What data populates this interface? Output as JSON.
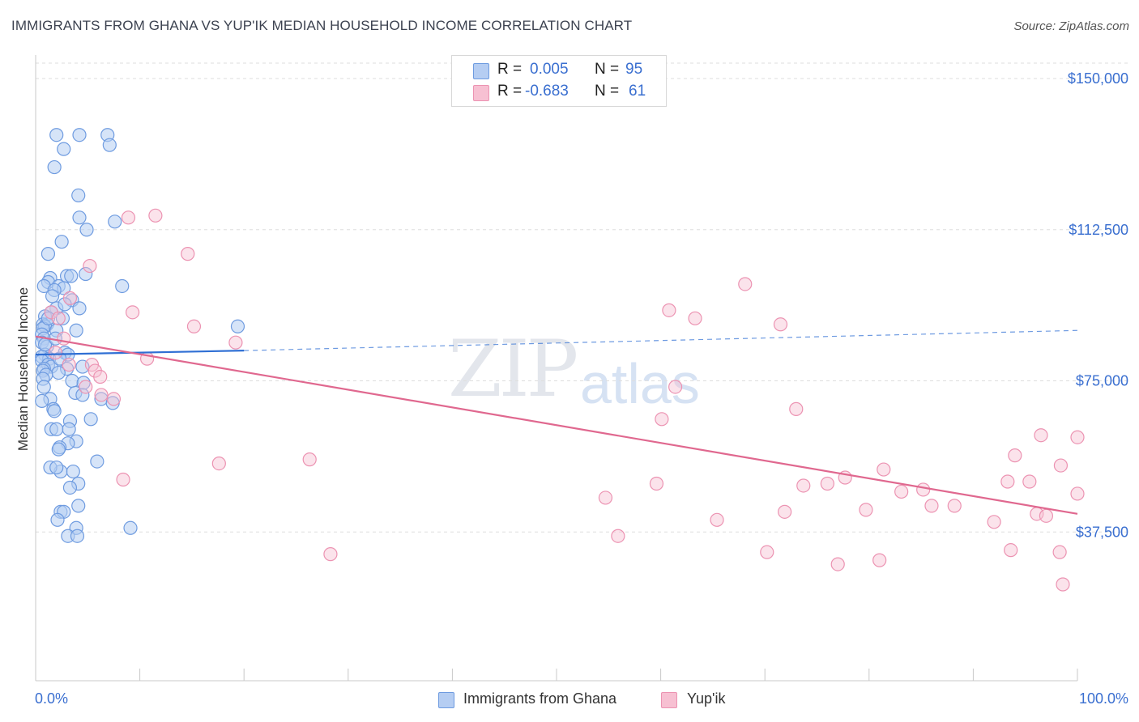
{
  "header": {
    "title": "IMMIGRANTS FROM GHANA VS YUP'IK MEDIAN HOUSEHOLD INCOME CORRELATION CHART",
    "source": "Source: ZipAtlas.com"
  },
  "watermark": {
    "zip": "ZIP",
    "atlas": "atlas"
  },
  "stats": {
    "ghana": {
      "r_label": "R =",
      "r_value": "0.005",
      "n_label": "N =",
      "n_value": "95"
    },
    "yupik": {
      "r_label": "R =",
      "r_value": "-0.683",
      "n_label": "N =",
      "n_value": "61"
    }
  },
  "legend": {
    "ghana": "Immigrants from Ghana",
    "yupik": "Yup'ik"
  },
  "colors": {
    "ghana_fill": "#b5cdf2",
    "ghana_stroke": "#6e9be0",
    "ghana_line": "#2f6fd4",
    "yupik_fill": "#f7c0d2",
    "yupik_stroke": "#ec93b2",
    "yupik_line": "#e0688f",
    "axis_label": "#3a6fd0",
    "grid": "#dedede"
  },
  "chart_data": {
    "type": "scatter",
    "title": "IMMIGRANTS FROM GHANA VS YUP'IK MEDIAN HOUSEHOLD INCOME CORRELATION CHART",
    "xlabel": "",
    "ylabel": "Median Household Income",
    "xlim": [
      0,
      100
    ],
    "ylim": [
      0,
      155000
    ],
    "x_tick_labels": [
      "0.0%",
      "100.0%"
    ],
    "y_ticks": [
      37500,
      75000,
      112500,
      150000
    ],
    "y_tick_labels": [
      "$37,500",
      "$75,000",
      "$112,500",
      "$150,000"
    ],
    "grid": true,
    "series": [
      {
        "name": "Immigrants from Ghana",
        "points": [
          [
            2.0,
            136000
          ],
          [
            4.2,
            136000
          ],
          [
            6.9,
            136000
          ],
          [
            2.7,
            132500
          ],
          [
            7.1,
            133500
          ],
          [
            1.8,
            128000
          ],
          [
            4.1,
            121000
          ],
          [
            4.2,
            115500
          ],
          [
            7.6,
            114500
          ],
          [
            4.9,
            112500
          ],
          [
            2.5,
            109500
          ],
          [
            1.2,
            106500
          ],
          [
            1.4,
            100500
          ],
          [
            3.0,
            101000
          ],
          [
            3.4,
            101000
          ],
          [
            4.8,
            101500
          ],
          [
            8.3,
            98500
          ],
          [
            1.2,
            99500
          ],
          [
            0.8,
            98500
          ],
          [
            2.2,
            98500
          ],
          [
            2.7,
            98000
          ],
          [
            1.8,
            97500
          ],
          [
            3.5,
            95000
          ],
          [
            2.0,
            93000
          ],
          [
            4.2,
            93000
          ],
          [
            1.5,
            92000
          ],
          [
            0.9,
            91000
          ],
          [
            2.6,
            90500
          ],
          [
            1.1,
            89000
          ],
          [
            0.7,
            89000
          ],
          [
            0.9,
            88500
          ],
          [
            0.7,
            88000
          ],
          [
            3.9,
            87500
          ],
          [
            2.0,
            87500
          ],
          [
            19.4,
            88500
          ],
          [
            0.6,
            86500
          ],
          [
            0.8,
            85500
          ],
          [
            0.6,
            84500
          ],
          [
            1.1,
            83500
          ],
          [
            2.8,
            82000
          ],
          [
            3.1,
            81500
          ],
          [
            0.9,
            81500
          ],
          [
            0.6,
            81000
          ],
          [
            1.3,
            80500
          ],
          [
            0.6,
            80000
          ],
          [
            1.2,
            79000
          ],
          [
            1.5,
            78500
          ],
          [
            0.8,
            78000
          ],
          [
            4.5,
            78500
          ],
          [
            3.0,
            78000
          ],
          [
            0.7,
            77500
          ],
          [
            2.2,
            77000
          ],
          [
            1.0,
            76500
          ],
          [
            0.7,
            75500
          ],
          [
            3.5,
            75000
          ],
          [
            4.6,
            74500
          ],
          [
            0.8,
            73500
          ],
          [
            3.8,
            72000
          ],
          [
            4.5,
            71500
          ],
          [
            1.4,
            70500
          ],
          [
            0.6,
            70000
          ],
          [
            6.3,
            70500
          ],
          [
            7.4,
            69500
          ],
          [
            1.7,
            68000
          ],
          [
            1.8,
            67500
          ],
          [
            3.3,
            65000
          ],
          [
            5.3,
            65500
          ],
          [
            1.5,
            63000
          ],
          [
            2.0,
            63000
          ],
          [
            3.2,
            63000
          ],
          [
            3.9,
            60000
          ],
          [
            3.1,
            59500
          ],
          [
            2.3,
            58500
          ],
          [
            2.2,
            58000
          ],
          [
            2.4,
            52500
          ],
          [
            1.4,
            53500
          ],
          [
            2.0,
            53500
          ],
          [
            3.6,
            52500
          ],
          [
            5.9,
            55000
          ],
          [
            4.1,
            49500
          ],
          [
            3.3,
            48500
          ],
          [
            4.1,
            44000
          ],
          [
            2.4,
            42500
          ],
          [
            2.7,
            42500
          ],
          [
            2.1,
            40500
          ],
          [
            3.9,
            38500
          ],
          [
            9.1,
            38500
          ],
          [
            3.1,
            36500
          ],
          [
            4.0,
            36500
          ],
          [
            1.2,
            90500
          ],
          [
            2.8,
            94000
          ],
          [
            1.6,
            96000
          ],
          [
            0.9,
            84000
          ],
          [
            2.3,
            80500
          ],
          [
            1.9,
            85500
          ]
        ]
      },
      {
        "name": "Yup'ik",
        "points": [
          [
            8.9,
            115500
          ],
          [
            11.5,
            116000
          ],
          [
            14.6,
            106500
          ],
          [
            5.2,
            103500
          ],
          [
            3.3,
            95500
          ],
          [
            9.3,
            92000
          ],
          [
            1.5,
            92000
          ],
          [
            2.2,
            90500
          ],
          [
            15.2,
            88500
          ],
          [
            19.2,
            84500
          ],
          [
            2.7,
            85500
          ],
          [
            10.7,
            80500
          ],
          [
            5.4,
            79000
          ],
          [
            3.2,
            79000
          ],
          [
            5.7,
            77500
          ],
          [
            6.2,
            76000
          ],
          [
            1.9,
            82000
          ],
          [
            4.8,
            73500
          ],
          [
            6.3,
            71500
          ],
          [
            7.5,
            70500
          ],
          [
            8.4,
            50500
          ],
          [
            17.6,
            54500
          ],
          [
            26.3,
            55500
          ],
          [
            28.3,
            32000
          ],
          [
            54.7,
            46000
          ],
          [
            55.9,
            36500
          ],
          [
            59.6,
            49500
          ],
          [
            60.1,
            65500
          ],
          [
            60.8,
            92500
          ],
          [
            61.4,
            73500
          ],
          [
            63.3,
            90500
          ],
          [
            65.4,
            40500
          ],
          [
            68.1,
            99000
          ],
          [
            70.2,
            32500
          ],
          [
            71.5,
            89000
          ],
          [
            71.9,
            42500
          ],
          [
            73.0,
            68000
          ],
          [
            73.7,
            49000
          ],
          [
            76.0,
            49500
          ],
          [
            77.0,
            29500
          ],
          [
            77.7,
            51000
          ],
          [
            79.7,
            43000
          ],
          [
            81.0,
            30500
          ],
          [
            81.4,
            53000
          ],
          [
            83.1,
            47500
          ],
          [
            85.2,
            48000
          ],
          [
            86.0,
            44000
          ],
          [
            88.2,
            44000
          ],
          [
            92.0,
            40000
          ],
          [
            93.3,
            50000
          ],
          [
            93.6,
            33000
          ],
          [
            94.0,
            56500
          ],
          [
            95.4,
            50000
          ],
          [
            96.1,
            42000
          ],
          [
            96.5,
            61500
          ],
          [
            97.0,
            41500
          ],
          [
            98.3,
            32500
          ],
          [
            98.4,
            54000
          ],
          [
            98.6,
            24500
          ],
          [
            100.0,
            61000
          ],
          [
            100.0,
            47000
          ]
        ]
      }
    ],
    "trend_lines": [
      {
        "name": "Immigrants from Ghana",
        "solid": [
          [
            0,
            81500
          ],
          [
            20,
            82500
          ]
        ],
        "dashed": [
          [
            20,
            82500
          ],
          [
            100,
            87500
          ]
        ]
      },
      {
        "name": "Yup'ik",
        "solid": [
          [
            0,
            86000
          ],
          [
            100,
            42000
          ]
        ]
      }
    ]
  }
}
